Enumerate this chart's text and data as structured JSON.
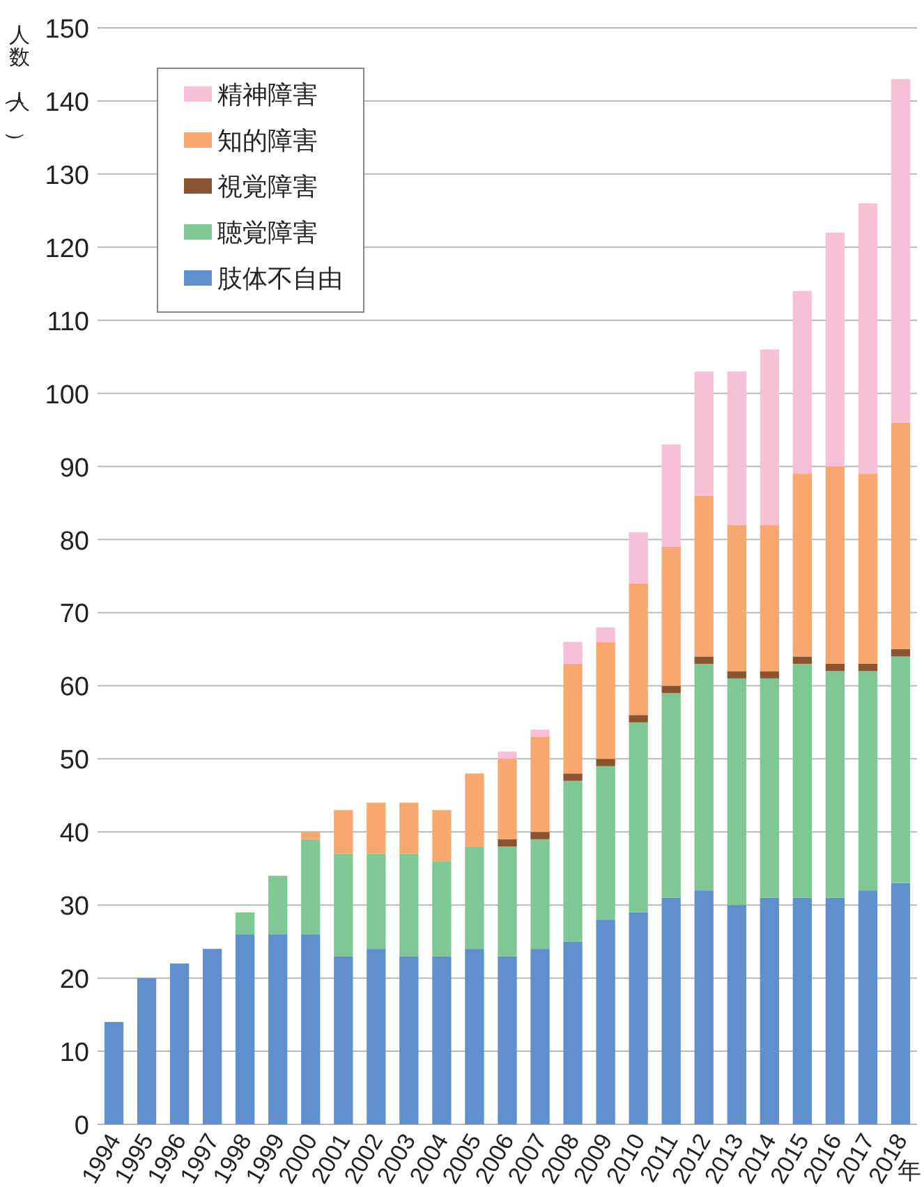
{
  "chart_data": {
    "type": "bar",
    "stacked": true,
    "ylabel": "人数（人）",
    "xlabel": "年",
    "categories": [
      "1994",
      "1995",
      "1996",
      "1997",
      "1998",
      "1999",
      "2000",
      "2001",
      "2002",
      "2003",
      "2004",
      "2005",
      "2006",
      "2007",
      "2008",
      "2009",
      "2010",
      "2011",
      "2012",
      "2013",
      "2014",
      "2015",
      "2016",
      "2017",
      "2018"
    ],
    "series": [
      {
        "name": "肢体不自由",
        "color": "#5f8fcd",
        "values": [
          14,
          20,
          22,
          24,
          26,
          26,
          26,
          23,
          24,
          23,
          23,
          24,
          23,
          24,
          25,
          28,
          29,
          31,
          32,
          30,
          31,
          31,
          31,
          32,
          33
        ]
      },
      {
        "name": "聴覚障害",
        "color": "#7fc795",
        "values": [
          0,
          0,
          0,
          0,
          3,
          8,
          13,
          14,
          13,
          14,
          13,
          14,
          15,
          15,
          22,
          21,
          26,
          28,
          31,
          31,
          30,
          32,
          31,
          30,
          31
        ]
      },
      {
        "name": "視覚障害",
        "color": "#8b5430",
        "values": [
          0,
          0,
          0,
          0,
          0,
          0,
          0,
          0,
          0,
          0,
          0,
          0,
          1,
          1,
          1,
          1,
          1,
          1,
          1,
          1,
          1,
          1,
          1,
          1,
          1
        ]
      },
      {
        "name": "知的障害",
        "color": "#f8a76f",
        "values": [
          0,
          0,
          0,
          0,
          0,
          0,
          1,
          6,
          7,
          7,
          7,
          10,
          11,
          13,
          15,
          16,
          18,
          19,
          22,
          20,
          20,
          25,
          27,
          26,
          31
        ]
      },
      {
        "name": "精神障害",
        "color": "#f5c0d8",
        "values": [
          0,
          0,
          0,
          0,
          0,
          0,
          0,
          0,
          0,
          0,
          0,
          0,
          1,
          1,
          3,
          2,
          7,
          14,
          17,
          21,
          24,
          25,
          32,
          37,
          47
        ]
      }
    ],
    "ylim": [
      0,
      150
    ],
    "yticks": [
      0,
      10,
      20,
      30,
      40,
      50,
      60,
      70,
      80,
      90,
      100,
      110,
      120,
      130,
      140,
      150
    ],
    "grid": "y",
    "legend": "top left"
  }
}
